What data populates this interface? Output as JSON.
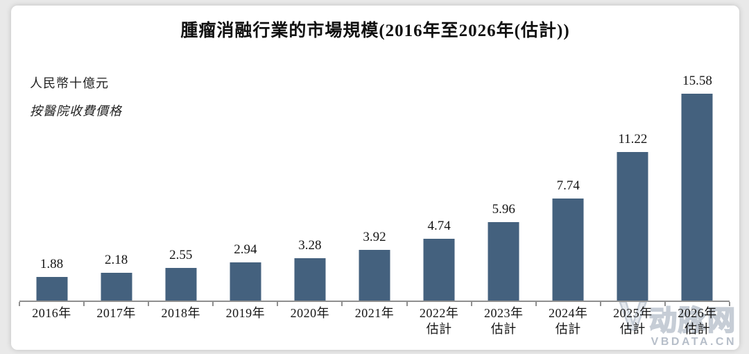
{
  "page": {
    "background_color": "#e9e9e9",
    "card_background": "#ffffff"
  },
  "chart_data": {
    "type": "bar",
    "title": "腫瘤消融行業的市場規模(2016年至2026年(估計))",
    "unit_label": "人民幣十億元",
    "basis_label": "按醫院收費價格",
    "categories": [
      "2016年",
      "2017年",
      "2018年",
      "2019年",
      "2020年",
      "2021年",
      "2022年",
      "2023年",
      "2024年",
      "2025年",
      "2026年"
    ],
    "category_sublabels": [
      "",
      "",
      "",
      "",
      "",
      "",
      "估計",
      "估計",
      "估計",
      "估計",
      "估計"
    ],
    "values": [
      1.88,
      2.18,
      2.55,
      2.94,
      3.28,
      3.92,
      4.74,
      5.96,
      7.74,
      11.22,
      15.58
    ],
    "value_labels": [
      "1.88",
      "2.18",
      "2.55",
      "2.94",
      "3.28",
      "3.92",
      "4.74",
      "5.96",
      "7.74",
      "11.22",
      "15.58"
    ],
    "bar_color": "#44617e",
    "axis_color": "#8f8f8f",
    "ylim": [
      0,
      15.58
    ],
    "grid": false,
    "legend": false,
    "xlabel": "",
    "ylabel": "人民幣十億元"
  },
  "watermark": {
    "logo_v": "V",
    "logo_text": "动脉网",
    "site": "VBDATA.CN",
    "color": "#c6cdd6"
  }
}
